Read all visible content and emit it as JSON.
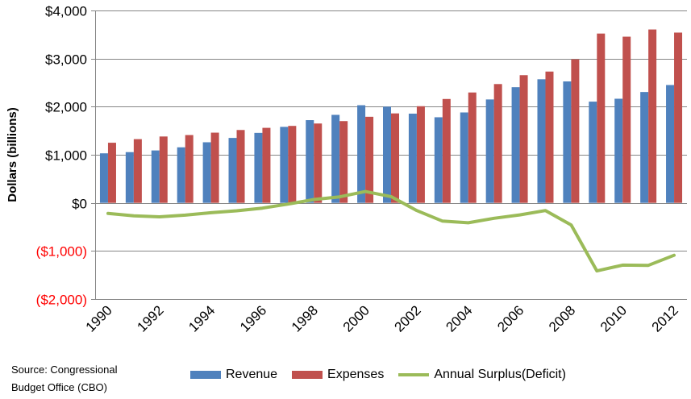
{
  "source_note": "Source: Congressional Budget Office (CBO)",
  "colors": {
    "revenue": "#4F81BD",
    "expenses": "#C0504D",
    "surplus": "#9BBB59",
    "negative_tick": "#FF0000",
    "grid": "#868686"
  },
  "chart_data": {
    "type": "bar",
    "title": "",
    "ylabel": "Dollars (billions)",
    "xlabel": "",
    "ylim": [
      -2000,
      4000
    ],
    "grid": true,
    "legend_position": "bottom",
    "y_ticks": [
      {
        "value": 4000,
        "label": "$4,000"
      },
      {
        "value": 3000,
        "label": "$3,000"
      },
      {
        "value": 2000,
        "label": "$2,000"
      },
      {
        "value": 1000,
        "label": "$1,000"
      },
      {
        "value": 0,
        "label": "$0"
      },
      {
        "value": -1000,
        "label": "($1,000)"
      },
      {
        "value": -2000,
        "label": "($2,000)"
      }
    ],
    "categories": [
      "1990",
      "1991",
      "1992",
      "1993",
      "1994",
      "1995",
      "1996",
      "1997",
      "1998",
      "1999",
      "2000",
      "2001",
      "2002",
      "2003",
      "2004",
      "2005",
      "2006",
      "2007",
      "2008",
      "2009",
      "2010",
      "2011",
      "2012"
    ],
    "x_tick_labels": [
      "1990",
      "",
      "1992",
      "",
      "1994",
      "",
      "1996",
      "",
      "1998",
      "",
      "2000",
      "",
      "2002",
      "",
      "2004",
      "",
      "2006",
      "",
      "2008",
      "",
      "2010",
      "",
      "2012"
    ],
    "series": [
      {
        "name": "Revenue",
        "type": "bar",
        "values": [
          1030,
          1055,
          1090,
          1155,
          1260,
          1350,
          1455,
          1580,
          1720,
          1830,
          2030,
          2000,
          1855,
          1780,
          1880,
          2150,
          2405,
          2570,
          2525,
          2105,
          2165,
          2305,
          2450
        ]
      },
      {
        "name": "Expenses",
        "type": "bar",
        "values": [
          1250,
          1325,
          1380,
          1410,
          1460,
          1515,
          1560,
          1600,
          1650,
          1700,
          1790,
          1860,
          2010,
          2160,
          2295,
          2470,
          2655,
          2730,
          2985,
          3520,
          3455,
          3605,
          3540
        ]
      },
      {
        "name": "Annual Surplus(Deficit)",
        "type": "line",
        "values": [
          -220,
          -270,
          -290,
          -255,
          -205,
          -165,
          -110,
          -25,
          70,
          125,
          235,
          130,
          -160,
          -380,
          -415,
          -320,
          -250,
          -160,
          -460,
          -1415,
          -1295,
          -1300,
          -1090
        ]
      }
    ]
  }
}
